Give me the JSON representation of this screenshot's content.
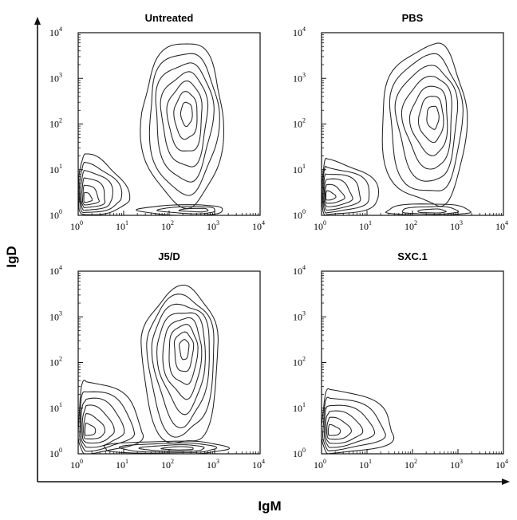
{
  "chart_data": {
    "type": "contour",
    "xlabel": "IgM",
    "ylabel": "IgD",
    "xscale": "log",
    "yscale": "log",
    "xlim": [
      1,
      10000
    ],
    "ylim": [
      1,
      10000
    ],
    "tick_base": "10",
    "tick_exponents": [
      "0",
      "1",
      "2",
      "3",
      "4"
    ],
    "panels": [
      {
        "title": "Untreated",
        "populations": [
          {
            "center": [
              250,
              180
            ],
            "extent_x": [
              25,
              1500
            ],
            "extent_y": [
              1.5,
              6000
            ],
            "levels": 7
          },
          {
            "center": [
              1.4,
              2.2
            ],
            "extent_x": [
              1,
              12
            ],
            "extent_y": [
              1,
              20
            ],
            "levels": 6
          },
          {
            "center": [
              500,
              1.3
            ],
            "extent_x": [
              20,
              1500
            ],
            "extent_y": [
              1,
              1.7
            ],
            "levels": 3
          }
        ]
      },
      {
        "title": "PBS",
        "populations": [
          {
            "center": [
              300,
              150
            ],
            "extent_x": [
              20,
              1500
            ],
            "extent_y": [
              1.5,
              5000
            ],
            "levels": 7
          },
          {
            "center": [
              1.3,
              2.5
            ],
            "extent_x": [
              1,
              18
            ],
            "extent_y": [
              1,
              16
            ],
            "levels": 6
          },
          {
            "center": [
              300,
              1.2
            ],
            "extent_x": [
              25,
              1800
            ],
            "extent_y": [
              1,
              1.8
            ],
            "levels": 3
          }
        ]
      },
      {
        "title": "J5/D",
        "populations": [
          {
            "center": [
              220,
              220
            ],
            "extent_x": [
              25,
              1200
            ],
            "extent_y": [
              1.3,
              4000
            ],
            "levels": 8
          },
          {
            "center": [
              1.5,
              3
            ],
            "extent_x": [
              1,
              25
            ],
            "extent_y": [
              1,
              40
            ],
            "levels": 6
          },
          {
            "center": [
              200,
              1.3
            ],
            "extent_x": [
              3,
              1800
            ],
            "extent_y": [
              1,
              1.9
            ],
            "levels": 4
          }
        ]
      },
      {
        "title": "SXC.1",
        "populations": [
          {
            "center": [
              1.5,
              3
            ],
            "extent_x": [
              1,
              40
            ],
            "extent_y": [
              1,
              25
            ],
            "levels": 6
          }
        ]
      }
    ]
  }
}
